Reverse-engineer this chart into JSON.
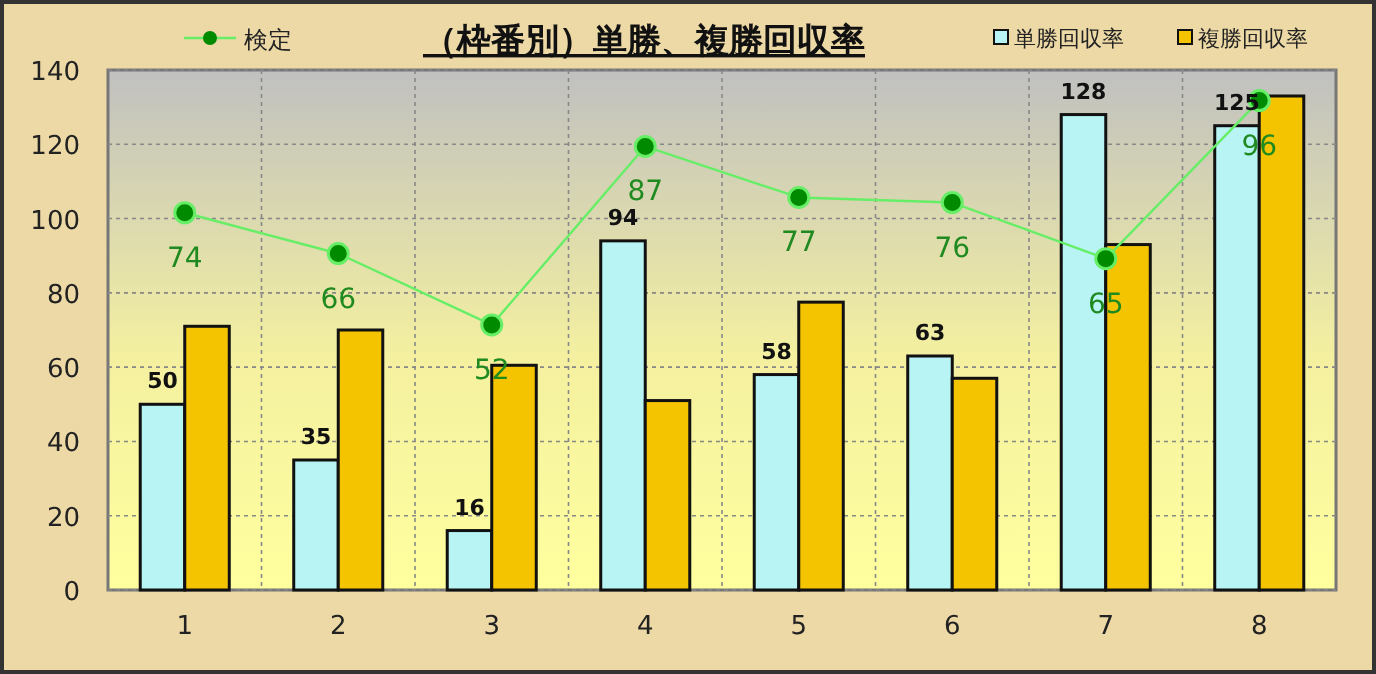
{
  "chart_data": {
    "type": "bar",
    "title": "（枠番別）単勝、複勝回収率",
    "categories": [
      "1",
      "2",
      "3",
      "4",
      "5",
      "6",
      "7",
      "8"
    ],
    "series": [
      {
        "name": "単勝回収率",
        "color": "#b8f4f4",
        "values": [
          50,
          35,
          16,
          94,
          58,
          63,
          128,
          125
        ],
        "value_labels": [
          "50",
          "35",
          "16",
          "94",
          "58",
          "63",
          "128",
          "125"
        ]
      },
      {
        "name": "複勝回収率",
        "color": "#f5c400",
        "values": [
          71,
          70,
          60.5,
          51,
          77.5,
          57,
          93,
          133
        ]
      },
      {
        "name": "検定",
        "type": "line",
        "axis": "y2",
        "color": "#66ee66",
        "values": [
          74,
          66,
          52,
          87,
          77,
          76,
          65,
          96
        ],
        "value_labels": [
          "74",
          "66",
          "52",
          "87",
          "77",
          "76",
          "65",
          "96"
        ]
      }
    ],
    "ylim": [
      0,
      140
    ],
    "yticks": [
      0,
      20,
      40,
      60,
      80,
      100,
      120,
      140
    ],
    "y2lim": [
      0,
      102
    ],
    "marker": "circle",
    "grid": true,
    "legend": "top"
  }
}
